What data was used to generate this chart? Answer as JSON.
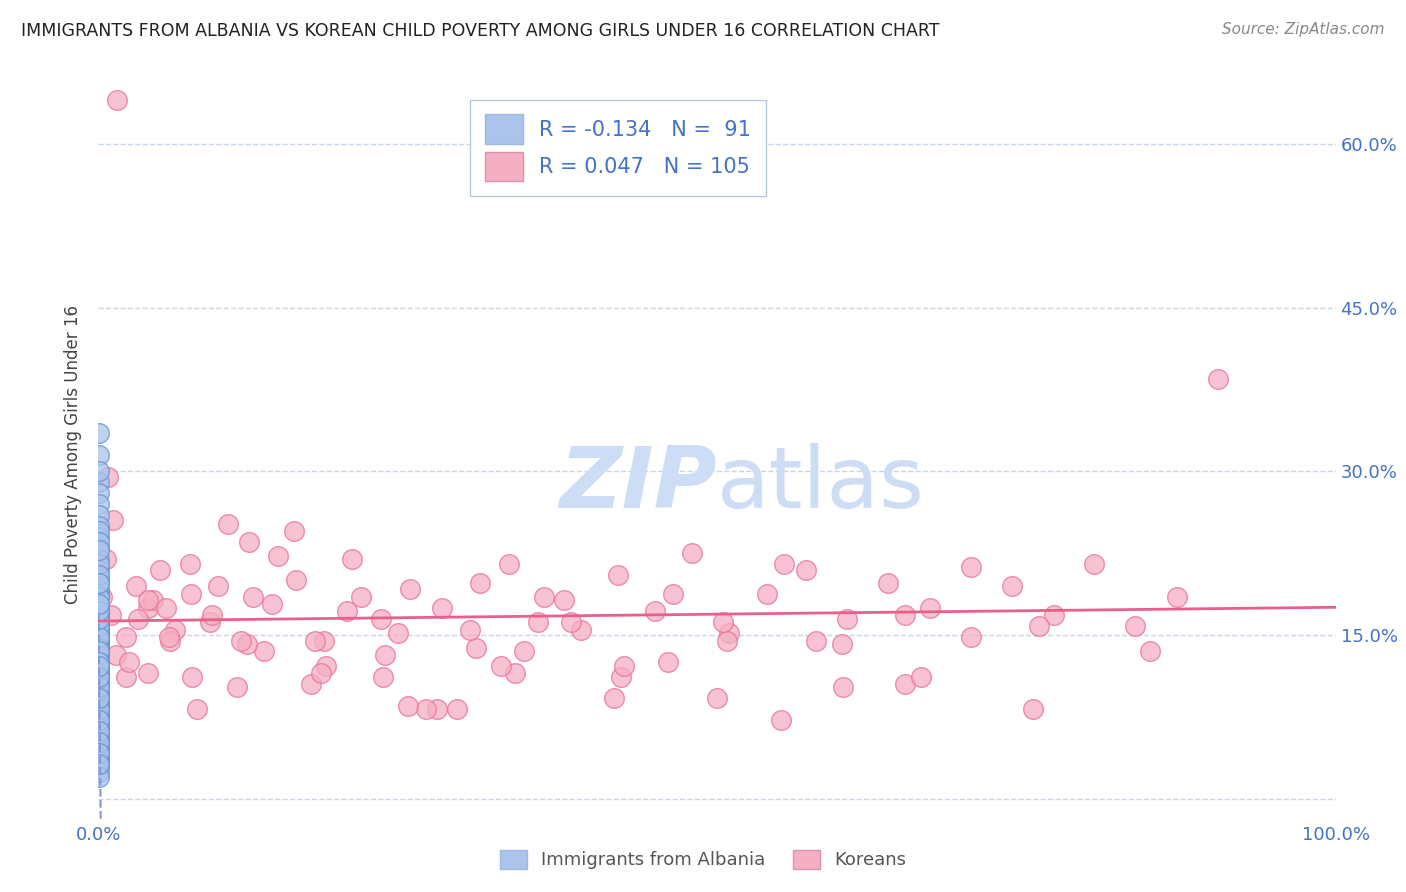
{
  "title": "IMMIGRANTS FROM ALBANIA VS KOREAN CHILD POVERTY AMONG GIRLS UNDER 16 CORRELATION CHART",
  "source": "Source: ZipAtlas.com",
  "ylabel": "Child Poverty Among Girls Under 16",
  "yticks": [
    0.0,
    0.15,
    0.3,
    0.45,
    0.6
  ],
  "ytick_labels": [
    "",
    "15.0%",
    "30.0%",
    "45.0%",
    "60.0%"
  ],
  "xtick_labels": [
    "0.0%",
    "100.0%"
  ],
  "legend_label1": "Immigrants from Albania",
  "legend_label2": "Koreans",
  "r1": -0.134,
  "n1": 91,
  "r2": 0.047,
  "n2": 105,
  "color_albania": "#aac4ec",
  "color_korean": "#f5afc3",
  "edge_color_albania": "#6090d0",
  "edge_color_korean": "#e87098",
  "line_color_albania": "#8098c8",
  "line_color_korean": "#e8608a",
  "watermark_color": "#ccddf5",
  "background_color": "#ffffff",
  "grid_color": "#c8d4e8",
  "albania_x": [
    0.0002,
    0.0003,
    0.0004,
    0.0002,
    0.0003,
    0.0001,
    0.0004,
    0.0005,
    0.0003,
    0.0002,
    0.0004,
    0.0002,
    0.0003,
    0.0005,
    0.0002,
    0.0004,
    0.0003,
    0.0002,
    0.0004,
    0.0003,
    0.0002,
    0.0003,
    0.0004,
    0.0002,
    0.0003,
    0.0005,
    0.0003,
    0.0002,
    0.0004,
    0.0003,
    0.0002,
    0.0003,
    0.0002,
    0.0004,
    0.0003,
    0.0002,
    0.0003,
    0.0004,
    0.0002,
    0.0003,
    0.0004,
    0.0002,
    0.0003,
    0.0004,
    0.0002,
    0.0003,
    0.0004,
    0.0005,
    0.0002,
    0.0003,
    0.0004,
    0.0002,
    0.0003,
    0.0002,
    0.0004,
    0.0003,
    0.0002,
    0.0003,
    0.0004,
    0.0002,
    0.0003,
    0.0004,
    0.0005,
    0.0002,
    0.0003,
    0.0004,
    0.0002,
    0.0003,
    0.0002,
    0.0004,
    0.0003,
    0.0002,
    0.0003,
    0.0004,
    0.0002,
    0.0003,
    0.0004,
    0.0005,
    0.0002,
    0.0003,
    0.0004,
    0.0002,
    0.0003,
    0.0002,
    0.0004,
    0.0003,
    0.0002,
    0.0003,
    0.0004,
    0.0002,
    0.0003
  ],
  "albania_y": [
    0.335,
    0.29,
    0.315,
    0.3,
    0.28,
    0.27,
    0.26,
    0.25,
    0.24,
    0.23,
    0.22,
    0.21,
    0.2,
    0.19,
    0.185,
    0.175,
    0.17,
    0.165,
    0.162,
    0.158,
    0.155,
    0.15,
    0.148,
    0.145,
    0.142,
    0.138,
    0.135,
    0.132,
    0.128,
    0.125,
    0.122,
    0.118,
    0.115,
    0.112,
    0.11,
    0.105,
    0.102,
    0.098,
    0.095,
    0.092,
    0.088,
    0.085,
    0.082,
    0.078,
    0.075,
    0.072,
    0.068,
    0.065,
    0.062,
    0.058,
    0.055,
    0.052,
    0.048,
    0.045,
    0.042,
    0.038,
    0.035,
    0.03,
    0.025,
    0.02,
    0.175,
    0.168,
    0.162,
    0.195,
    0.185,
    0.152,
    0.145,
    0.138,
    0.215,
    0.205,
    0.198,
    0.245,
    0.235,
    0.228,
    0.158,
    0.148,
    0.135,
    0.125,
    0.165,
    0.172,
    0.178,
    0.082,
    0.072,
    0.062,
    0.052,
    0.042,
    0.102,
    0.092,
    0.112,
    0.122,
    0.032
  ],
  "korean_x": [
    0.003,
    0.006,
    0.01,
    0.015,
    0.022,
    0.03,
    0.04,
    0.05,
    0.062,
    0.075,
    0.09,
    0.105,
    0.122,
    0.14,
    0.16,
    0.182,
    0.205,
    0.228,
    0.252,
    0.278,
    0.305,
    0.332,
    0.36,
    0.39,
    0.42,
    0.45,
    0.48,
    0.51,
    0.54,
    0.572,
    0.605,
    0.638,
    0.672,
    0.705,
    0.738,
    0.772,
    0.805,
    0.838,
    0.872,
    0.905,
    0.008,
    0.014,
    0.022,
    0.032,
    0.044,
    0.058,
    0.074,
    0.092,
    0.112,
    0.134,
    0.158,
    0.184,
    0.212,
    0.242,
    0.274,
    0.308,
    0.344,
    0.382,
    0.422,
    0.464,
    0.508,
    0.554,
    0.602,
    0.652,
    0.012,
    0.025,
    0.04,
    0.057,
    0.076,
    0.097,
    0.12,
    0.145,
    0.172,
    0.201,
    0.232,
    0.265,
    0.3,
    0.337,
    0.376,
    0.417,
    0.46,
    0.505,
    0.552,
    0.601,
    0.652,
    0.705,
    0.76,
    0.04,
    0.08,
    0.125,
    0.175,
    0.23,
    0.29,
    0.355,
    0.425,
    0.5,
    0.58,
    0.665,
    0.755,
    0.85,
    0.055,
    0.115,
    0.18,
    0.25,
    0.325
  ],
  "korean_y": [
    0.185,
    0.22,
    0.168,
    0.64,
    0.148,
    0.195,
    0.175,
    0.21,
    0.155,
    0.188,
    0.162,
    0.252,
    0.235,
    0.178,
    0.2,
    0.145,
    0.22,
    0.165,
    0.192,
    0.175,
    0.138,
    0.215,
    0.185,
    0.155,
    0.205,
    0.172,
    0.225,
    0.152,
    0.188,
    0.21,
    0.165,
    0.198,
    0.175,
    0.148,
    0.195,
    0.168,
    0.215,
    0.158,
    0.185,
    0.385,
    0.295,
    0.132,
    0.112,
    0.165,
    0.182,
    0.145,
    0.215,
    0.168,
    0.102,
    0.135,
    0.245,
    0.122,
    0.185,
    0.152,
    0.082,
    0.198,
    0.135,
    0.162,
    0.112,
    0.188,
    0.145,
    0.215,
    0.102,
    0.168,
    0.255,
    0.125,
    0.182,
    0.148,
    0.112,
    0.195,
    0.142,
    0.222,
    0.105,
    0.172,
    0.132,
    0.082,
    0.155,
    0.115,
    0.182,
    0.092,
    0.125,
    0.162,
    0.072,
    0.142,
    0.105,
    0.212,
    0.158,
    0.115,
    0.082,
    0.185,
    0.145,
    0.112,
    0.082,
    0.162,
    0.122,
    0.092,
    0.145,
    0.112,
    0.082,
    0.135,
    0.175,
    0.145,
    0.115,
    0.085,
    0.122
  ]
}
